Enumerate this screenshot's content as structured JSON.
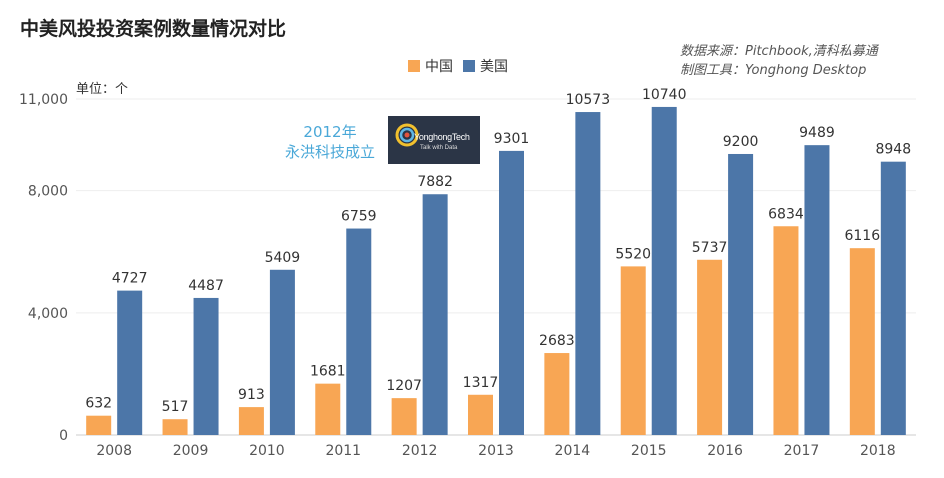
{
  "title": "中美风投投资案例数量情况对比",
  "source": {
    "line1": "数据来源：Pitchbook,清科私募通",
    "line2": "制图工具：Yonghong Desktop"
  },
  "unit_label": "单位：个",
  "annotation": {
    "line1": "2012年",
    "line2": "永洪科技成立"
  },
  "logo": {
    "text": "YonghongTech",
    "subtext": "Talk with Data"
  },
  "chart_data": {
    "type": "bar",
    "categories": [
      "2008",
      "2009",
      "2010",
      "2011",
      "2012",
      "2013",
      "2014",
      "2015",
      "2016",
      "2017",
      "2018"
    ],
    "series": [
      {
        "name": "中国",
        "color": "#f8a654",
        "values": [
          632,
          517,
          913,
          1681,
          1207,
          1317,
          2683,
          5520,
          5737,
          6834,
          6116
        ]
      },
      {
        "name": "美国",
        "color": "#4c76a8",
        "values": [
          4727,
          4487,
          5409,
          6759,
          7882,
          9301,
          10573,
          10740,
          9200,
          9489,
          8948
        ]
      }
    ],
    "yticks": [
      "0",
      "4,000",
      "8,000",
      "11,000"
    ],
    "ytick_values": [
      0,
      4000,
      8000,
      11000
    ],
    "ylim": [
      0,
      11000
    ],
    "legend_position": "top-center",
    "grid": true
  }
}
